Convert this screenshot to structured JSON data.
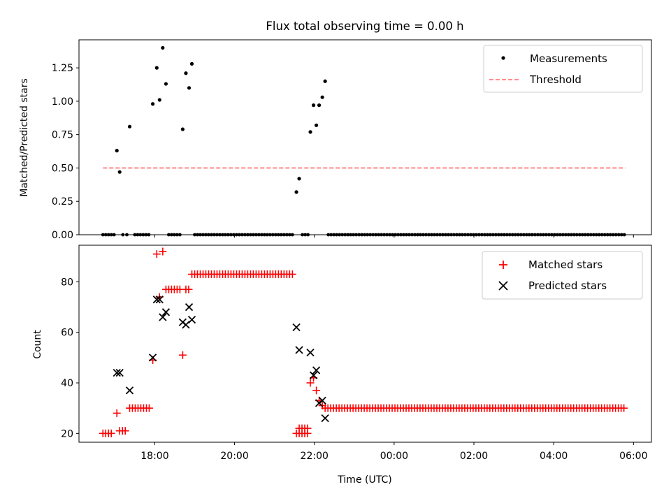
{
  "figure": {
    "title": "Flux total observing time = 0.00 h"
  },
  "chart_data": [
    {
      "type": "scatter",
      "ylabel": "Matched/Predicted stars",
      "xlabel": "",
      "xlim": [
        16.1,
        30.45
      ],
      "ylim": [
        0,
        1.46
      ],
      "yticks": [
        0.0,
        0.25,
        0.5,
        0.75,
        1.0,
        1.25
      ],
      "ytick_labels": [
        "0.00",
        "0.25",
        "0.50",
        "0.75",
        "1.00",
        "1.25"
      ],
      "xticks": [
        18,
        20,
        22,
        24,
        26,
        28,
        30
      ],
      "legend": {
        "placement": "top-right",
        "entries": [
          "Measurements",
          "Threshold"
        ]
      },
      "threshold": {
        "name": "Threshold",
        "value": 0.5,
        "x": [
          16.7,
          29.8
        ],
        "color": "#ff7f7f"
      },
      "measurements_color": "#000000",
      "measurements": [
        [
          17.05,
          0.63
        ],
        [
          17.12,
          0.47
        ],
        [
          17.37,
          0.81
        ],
        [
          17.95,
          0.98
        ],
        [
          18.05,
          1.25
        ],
        [
          18.12,
          1.01
        ],
        [
          18.2,
          1.4
        ],
        [
          18.28,
          1.13
        ],
        [
          18.7,
          0.79
        ],
        [
          18.78,
          1.21
        ],
        [
          18.86,
          1.1
        ],
        [
          18.93,
          1.28
        ],
        [
          21.55,
          0.32
        ],
        [
          21.62,
          0.42
        ],
        [
          21.9,
          0.77
        ],
        [
          21.98,
          0.97
        ],
        [
          22.05,
          0.82
        ],
        [
          22.12,
          0.97
        ],
        [
          22.2,
          1.03
        ],
        [
          22.27,
          1.15
        ]
      ],
      "zero_runs": [
        {
          "from": 16.7,
          "to": 17.0,
          "step": 0.07
        },
        {
          "from": 17.3,
          "to": 17.35,
          "step": 0.07
        },
        {
          "from": 17.5,
          "to": 17.9,
          "step": 0.07
        },
        {
          "from": 18.35,
          "to": 18.65,
          "step": 0.07
        },
        {
          "from": 19.0,
          "to": 21.5,
          "step": 0.07
        },
        {
          "from": 21.7,
          "to": 21.85,
          "step": 0.07
        },
        {
          "from": 22.35,
          "to": 29.8,
          "step": 0.07
        }
      ],
      "zero_points": [
        [
          17.2,
          0.0
        ]
      ]
    },
    {
      "type": "scatter",
      "ylabel": "Count",
      "xlabel": "Time (UTC)",
      "xlim": [
        16.1,
        30.45
      ],
      "ylim": [
        16.5,
        94.5
      ],
      "yticks": [
        20,
        40,
        60,
        80
      ],
      "ytick_labels": [
        "20",
        "40",
        "60",
        "80"
      ],
      "xticks": [
        18,
        20,
        22,
        24,
        26,
        28,
        30
      ],
      "xtick_labels": [
        "18:00",
        "20:00",
        "22:00",
        "00:00",
        "02:00",
        "04:00",
        "06:00"
      ],
      "legend": {
        "placement": "top-right",
        "entries": [
          "Matched stars",
          "Predicted stars"
        ]
      },
      "series": [
        {
          "name": "Matched stars",
          "marker": "+",
          "color": "#ff0000",
          "points": [
            [
              17.05,
              28
            ],
            [
              17.95,
              49
            ],
            [
              18.05,
              91
            ],
            [
              18.2,
              92
            ],
            [
              18.12,
              74
            ],
            [
              18.7,
              51
            ],
            [
              21.9,
              40
            ],
            [
              21.98,
              42
            ],
            [
              22.05,
              37
            ],
            [
              22.12,
              33
            ],
            [
              22.2,
              31
            ]
          ],
          "runs": [
            {
              "from": 16.7,
              "to": 16.95,
              "step": 0.07,
              "y": 20
            },
            {
              "from": 17.12,
              "to": 17.3,
              "step": 0.07,
              "y": 21
            },
            {
              "from": 17.37,
              "to": 17.9,
              "step": 0.07,
              "y": 30
            },
            {
              "from": 18.28,
              "to": 18.65,
              "step": 0.07,
              "y": 77
            },
            {
              "from": 18.78,
              "to": 18.9,
              "step": 0.07,
              "y": 77
            },
            {
              "from": 18.93,
              "to": 21.5,
              "step": 0.07,
              "y": 83
            },
            {
              "from": 21.55,
              "to": 21.85,
              "step": 0.07,
              "y": 20
            },
            {
              "from": 21.62,
              "to": 21.85,
              "step": 0.07,
              "y": 22
            },
            {
              "from": 22.27,
              "to": 29.8,
              "step": 0.07,
              "y": 30
            }
          ]
        },
        {
          "name": "Predicted stars",
          "marker": "x",
          "color": "#000000",
          "points": [
            [
              17.05,
              44
            ],
            [
              17.12,
              44
            ],
            [
              17.37,
              37
            ],
            [
              17.95,
              50
            ],
            [
              18.05,
              73
            ],
            [
              18.12,
              73
            ],
            [
              18.2,
              66
            ],
            [
              18.28,
              68
            ],
            [
              18.7,
              64
            ],
            [
              18.78,
              63
            ],
            [
              18.86,
              70
            ],
            [
              18.93,
              65
            ],
            [
              21.55,
              62
            ],
            [
              21.62,
              53
            ],
            [
              21.9,
              52
            ],
            [
              21.98,
              43
            ],
            [
              22.05,
              45
            ],
            [
              22.12,
              32
            ],
            [
              22.2,
              33
            ],
            [
              22.27,
              26
            ]
          ]
        }
      ]
    }
  ]
}
